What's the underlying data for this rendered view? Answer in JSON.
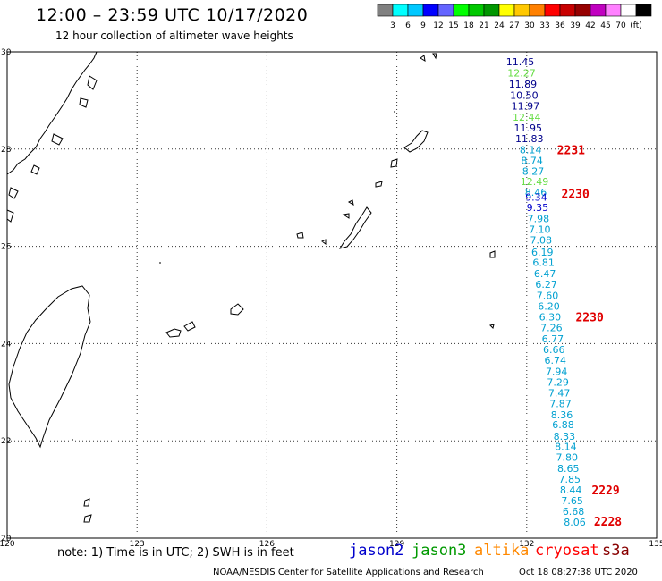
{
  "title": "12:00 – 23:59 UTC 10/17/2020",
  "subtitle": "12 hour collection of altimeter wave heights",
  "colorbar": {
    "colors": [
      "#808080",
      "#00ffff",
      "#00c8ff",
      "#0000ff",
      "#6464ff",
      "#00ff00",
      "#00c800",
      "#009600",
      "#ffff00",
      "#ffc800",
      "#ff8000",
      "#ff0000",
      "#c80000",
      "#960000",
      "#c000c0",
      "#ff80ff",
      "#ffffff",
      "#000000"
    ],
    "labels": [
      "3",
      "6",
      "9",
      "12",
      "15",
      "18",
      "21",
      "24",
      "27",
      "30",
      "33",
      "36",
      "39",
      "42",
      "45",
      "70",
      "(ft)"
    ]
  },
  "axes": {
    "lon_ticks": [
      "120",
      "123",
      "126",
      "129",
      "132",
      "135"
    ],
    "lat_ticks": [
      "30",
      "28",
      "26",
      "24",
      "22",
      "20"
    ]
  },
  "swh_points": [
    {
      "lon": 131.85,
      "lat": 29.8,
      "value": "11.45",
      "color": "#00008b"
    },
    {
      "lon": 131.88,
      "lat": 29.57,
      "value": "12.27",
      "color": "#66dd44"
    },
    {
      "lon": 131.91,
      "lat": 29.34,
      "value": "11.89",
      "color": "#00008b"
    },
    {
      "lon": 131.94,
      "lat": 29.11,
      "value": "10.50",
      "color": "#00008b"
    },
    {
      "lon": 131.97,
      "lat": 28.89,
      "value": "11.97",
      "color": "#00008b"
    },
    {
      "lon": 132.0,
      "lat": 28.66,
      "value": "12.44",
      "color": "#66dd44"
    },
    {
      "lon": 132.03,
      "lat": 28.44,
      "value": "11.95",
      "color": "#00008b"
    },
    {
      "lon": 132.06,
      "lat": 28.22,
      "value": "11.83",
      "color": "#00008b"
    },
    {
      "lon": 132.09,
      "lat": 27.99,
      "value": "8.14",
      "color": "#00a0d0"
    },
    {
      "lon": 132.12,
      "lat": 27.77,
      "value": "8.74",
      "color": "#00a0d0"
    },
    {
      "lon": 132.15,
      "lat": 27.55,
      "value": "8.27",
      "color": "#00a0d0"
    },
    {
      "lon": 132.18,
      "lat": 27.33,
      "value": "12.49",
      "color": "#66dd44"
    },
    {
      "lon": 132.21,
      "lat": 27.11,
      "value": "8.46",
      "color": "#00a0d0"
    },
    {
      "lon": 132.22,
      "lat": 27.01,
      "value": "9.34",
      "color": "#0000cc"
    },
    {
      "lon": 132.25,
      "lat": 26.8,
      "value": "9.35",
      "color": "#0000cc"
    },
    {
      "lon": 132.27,
      "lat": 26.57,
      "value": "7.98",
      "color": "#00a0d0"
    },
    {
      "lon": 132.3,
      "lat": 26.35,
      "value": "7.10",
      "color": "#00a0d0"
    },
    {
      "lon": 132.33,
      "lat": 26.13,
      "value": "7.08",
      "color": "#00a0d0"
    },
    {
      "lon": 132.36,
      "lat": 25.88,
      "value": "6.19",
      "color": "#00a0d0"
    },
    {
      "lon": 132.39,
      "lat": 25.67,
      "value": "6.81",
      "color": "#00a0d0"
    },
    {
      "lon": 132.42,
      "lat": 25.44,
      "value": "6.47",
      "color": "#00a0d0"
    },
    {
      "lon": 132.45,
      "lat": 25.22,
      "value": "6.27",
      "color": "#00a0d0"
    },
    {
      "lon": 132.48,
      "lat": 24.99,
      "value": "7.60",
      "color": "#00a0d0"
    },
    {
      "lon": 132.51,
      "lat": 24.77,
      "value": "6.20",
      "color": "#00a0d0"
    },
    {
      "lon": 132.54,
      "lat": 24.55,
      "value": "6.30",
      "color": "#00a0d0"
    },
    {
      "lon": 132.57,
      "lat": 24.33,
      "value": "7.26",
      "color": "#00a0d0"
    },
    {
      "lon": 132.6,
      "lat": 24.1,
      "value": "6.77",
      "color": "#00a0d0"
    },
    {
      "lon": 132.63,
      "lat": 23.88,
      "value": "6.66",
      "color": "#00a0d0"
    },
    {
      "lon": 132.66,
      "lat": 23.66,
      "value": "6.74",
      "color": "#00a0d0"
    },
    {
      "lon": 132.69,
      "lat": 23.43,
      "value": "7.94",
      "color": "#00a0d0"
    },
    {
      "lon": 132.72,
      "lat": 23.21,
      "value": "7.29",
      "color": "#00a0d0"
    },
    {
      "lon": 132.75,
      "lat": 22.99,
      "value": "7.47",
      "color": "#00a0d0"
    },
    {
      "lon": 132.78,
      "lat": 22.77,
      "value": "7.87",
      "color": "#00a0d0"
    },
    {
      "lon": 132.81,
      "lat": 22.54,
      "value": "8.36",
      "color": "#00a0d0"
    },
    {
      "lon": 132.84,
      "lat": 22.33,
      "value": "6.88",
      "color": "#00a0d0"
    },
    {
      "lon": 132.87,
      "lat": 22.1,
      "value": "8.33",
      "color": "#00a0d0"
    },
    {
      "lon": 132.9,
      "lat": 21.88,
      "value": "8.14",
      "color": "#00a0d0"
    },
    {
      "lon": 132.93,
      "lat": 21.66,
      "value": "7.80",
      "color": "#00a0d0"
    },
    {
      "lon": 132.96,
      "lat": 21.43,
      "value": "8.65",
      "color": "#00a0d0"
    },
    {
      "lon": 132.99,
      "lat": 21.21,
      "value": "7.85",
      "color": "#00a0d0"
    },
    {
      "lon": 133.02,
      "lat": 20.99,
      "value": "8.44",
      "color": "#00a0d0"
    },
    {
      "lon": 133.05,
      "lat": 20.77,
      "value": "7.65",
      "color": "#00a0d0"
    },
    {
      "lon": 133.08,
      "lat": 20.55,
      "value": "6.68",
      "color": "#00a0d0"
    },
    {
      "lon": 133.11,
      "lat": 20.33,
      "value": "8.06",
      "color": "#00a0d0"
    }
  ],
  "time_labels": [
    {
      "lon": 132.7,
      "lat": 27.99,
      "text": "2231"
    },
    {
      "lon": 132.8,
      "lat": 27.09,
      "text": "2230"
    },
    {
      "lon": 133.13,
      "lat": 24.55,
      "text": "2230"
    },
    {
      "lon": 133.5,
      "lat": 20.99,
      "text": "2229"
    },
    {
      "lon": 133.55,
      "lat": 20.35,
      "text": "2228"
    }
  ],
  "note": "note: 1) Time is in UTC; 2) SWH is in feet",
  "legend": [
    {
      "name": "jason2",
      "color": "#0000cc"
    },
    {
      "name": "jason3",
      "color": "#009900"
    },
    {
      "name": "altika",
      "color": "#ff8800"
    },
    {
      "name": "cryosat",
      "color": "#ff0000"
    },
    {
      "name": "s3a",
      "color": "#880000"
    }
  ],
  "footer_left": "NOAA/NESDIS Center for Satellite Applications and Research",
  "footer_right": "Oct 18 08:27:38 UTC 2020"
}
